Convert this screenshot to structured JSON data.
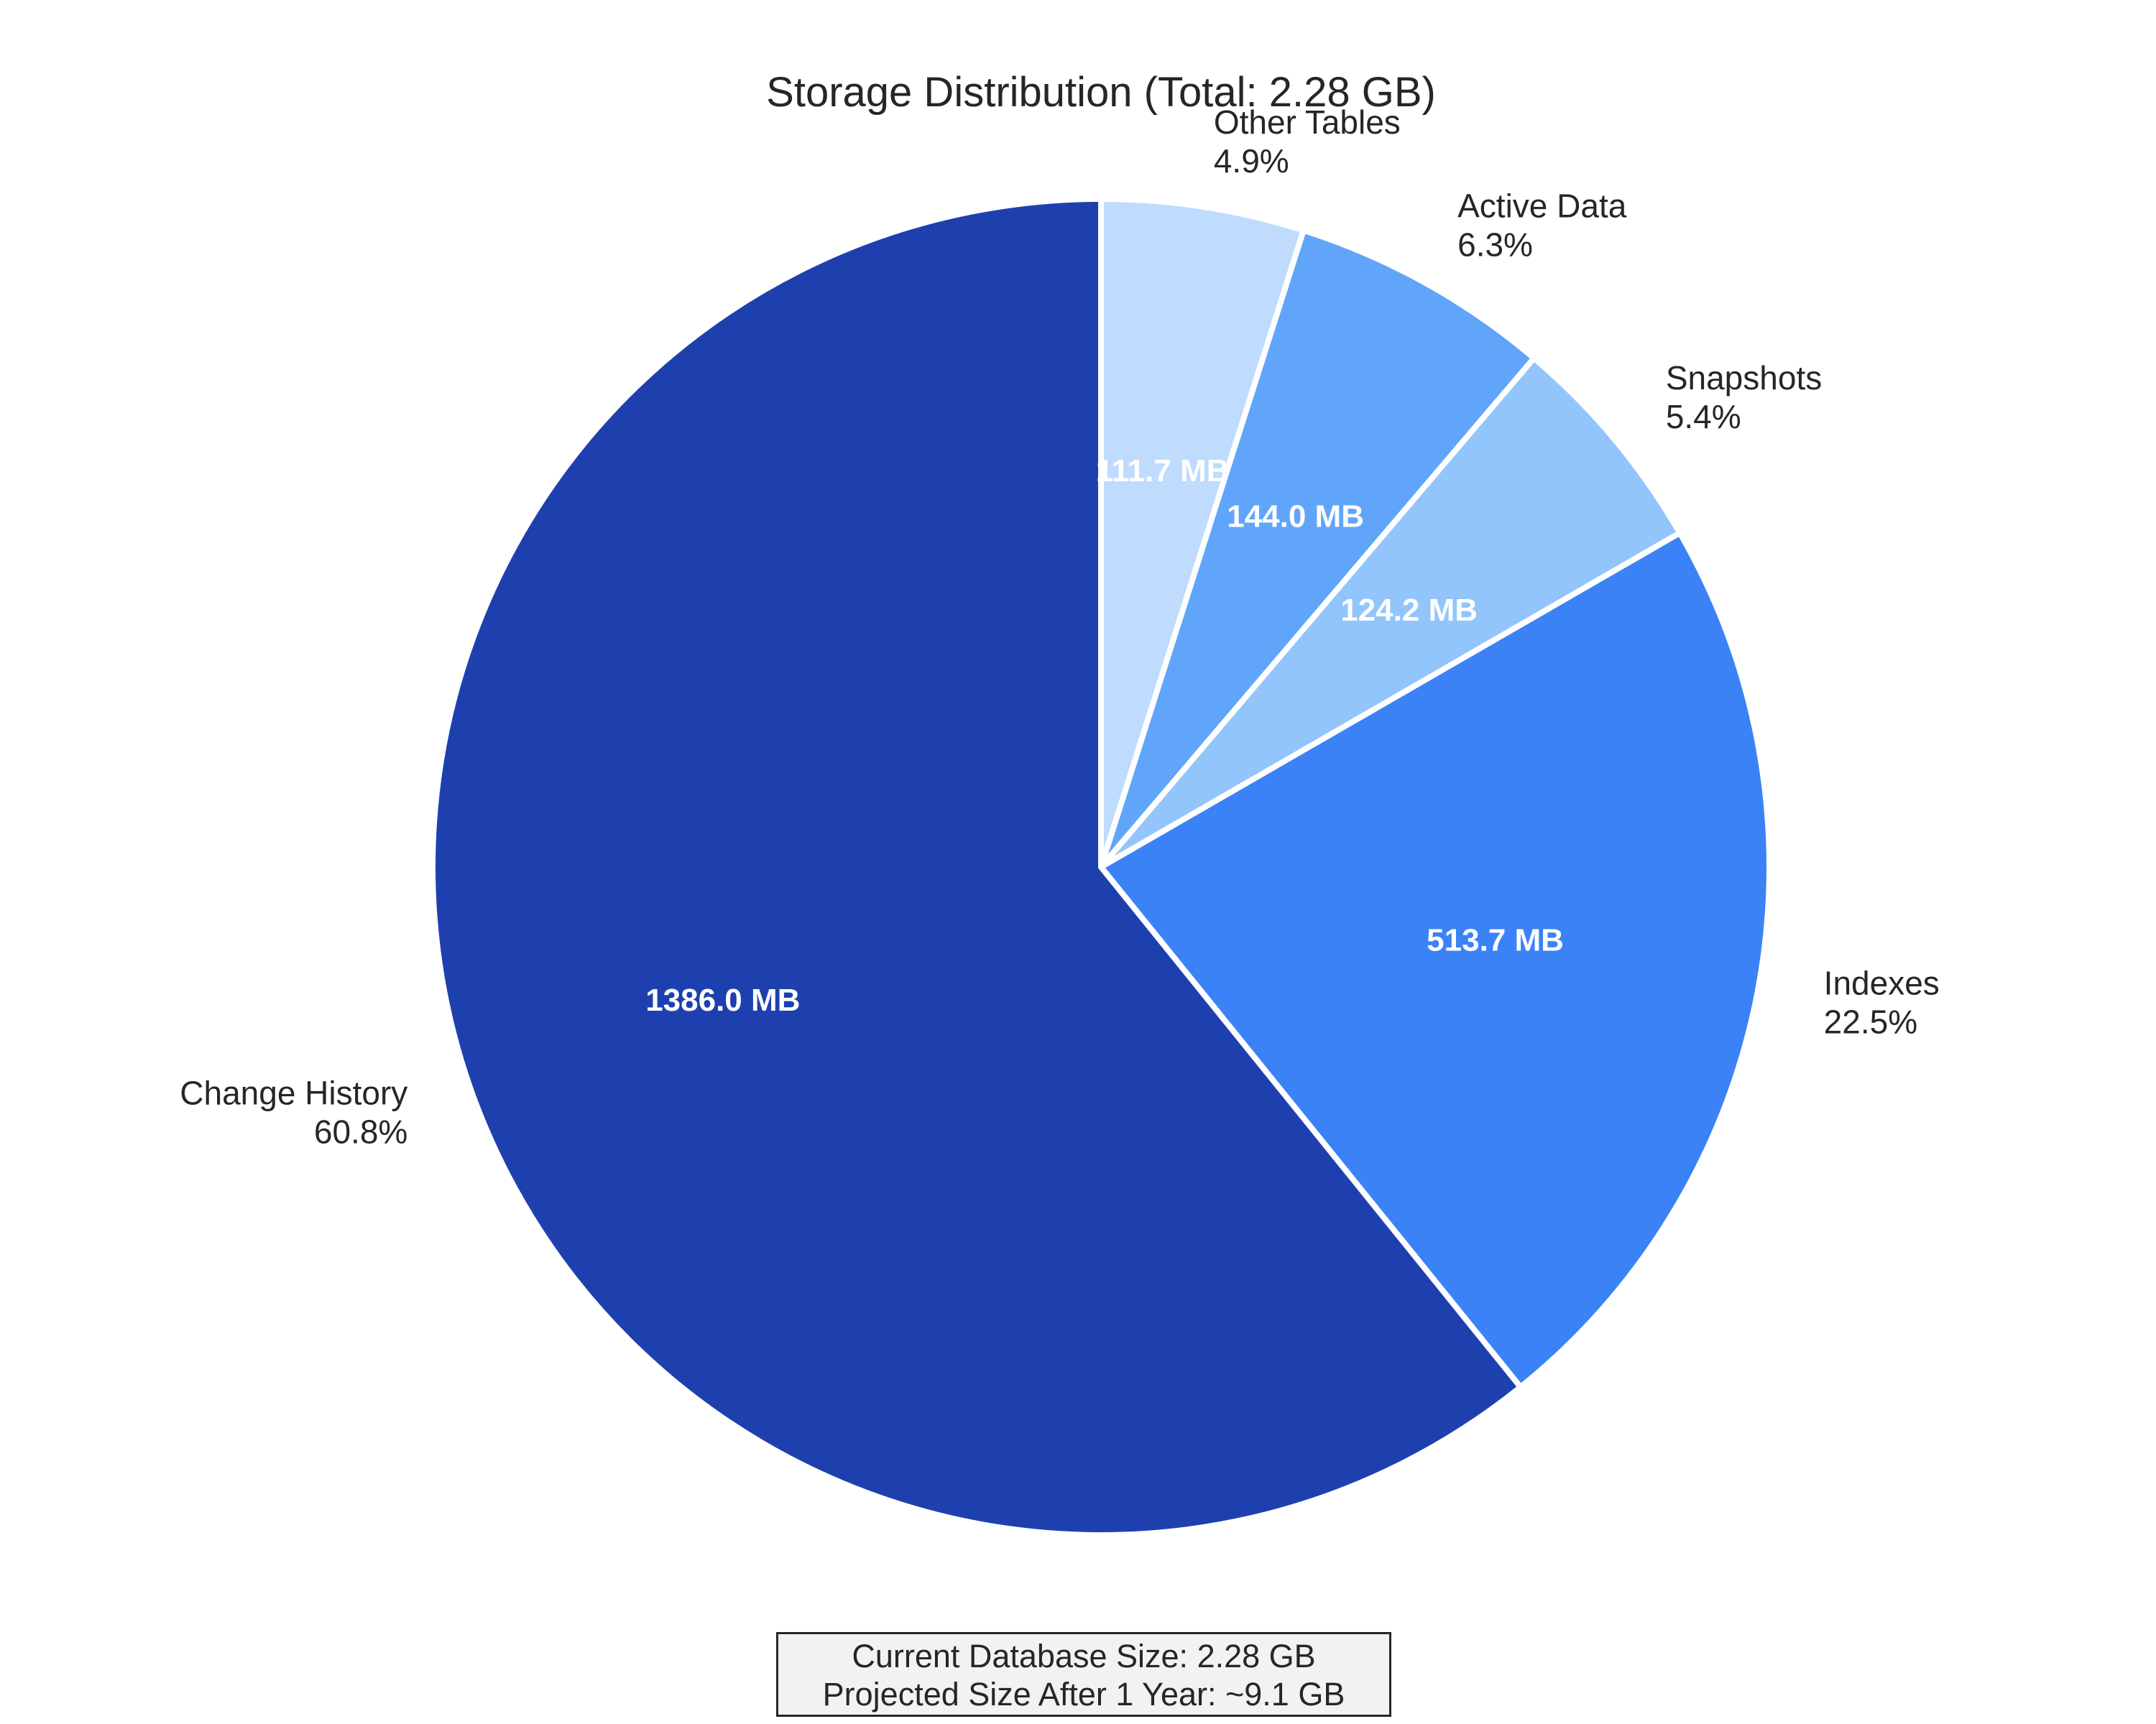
{
  "chart_data": {
    "type": "pie",
    "title": "Storage Distribution (Total: 2.28 GB)",
    "start_angle_deg": 90,
    "direction": "clockwise",
    "slices": [
      {
        "name": "Other Tables",
        "value_mb": 111.7,
        "value_label": "111.7 MB",
        "percent_label": "4.9%",
        "color": "#bfdbfe"
      },
      {
        "name": "Active Data",
        "value_mb": 144.0,
        "value_label": "144.0 MB",
        "percent_label": "6.3%",
        "color": "#60a5fa"
      },
      {
        "name": "Snapshots",
        "value_mb": 124.2,
        "value_label": "124.2 MB",
        "percent_label": "5.4%",
        "color": "#93c5fd"
      },
      {
        "name": "Indexes",
        "value_mb": 513.7,
        "value_label": "513.7 MB",
        "percent_label": "22.5%",
        "color": "#3b82f6"
      },
      {
        "name": "Change History",
        "value_mb": 1386.0,
        "value_label": "1386.0 MB",
        "percent_label": "60.8%",
        "color": "#1e40af"
      }
    ]
  },
  "footer": {
    "line1": "Current Database Size: 2.28 GB",
    "line2": "Projected Size After 1 Year: ~9.1 GB"
  }
}
